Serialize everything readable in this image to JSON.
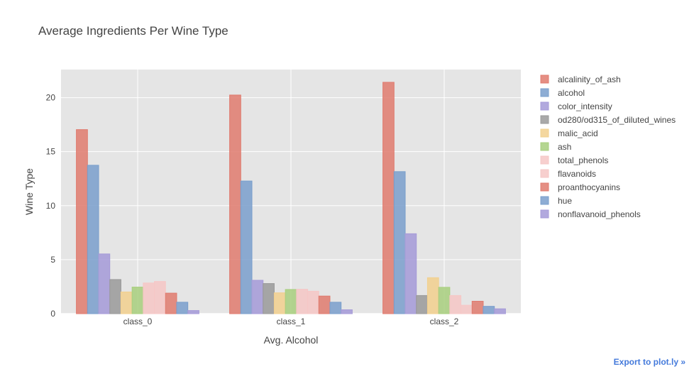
{
  "chart_data": {
    "type": "bar",
    "title": "Average Ingredients Per Wine Type",
    "xlabel": "Avg. Alcohol",
    "ylabel": "Wine Type",
    "categories": [
      "class_0",
      "class_1",
      "class_2"
    ],
    "ylim": [
      0,
      22.6
    ],
    "yticks": [
      0,
      5,
      10,
      15,
      20
    ],
    "grid": true,
    "legend_position": "right",
    "plot_background": "#e5e5e5",
    "series": [
      {
        "name": "alcalinity_of_ash",
        "color": "#e07b6f",
        "values": [
          17.04,
          20.24,
          21.42
        ]
      },
      {
        "name": "alcohol",
        "color": "#7a9fcc",
        "values": [
          13.74,
          12.28,
          13.15
        ]
      },
      {
        "name": "color_intensity",
        "color": "#a59ad8",
        "values": [
          5.53,
          3.09,
          7.4
        ]
      },
      {
        "name": "od280/od315_of_diluted_wines",
        "color": "#9a9a9a",
        "values": [
          3.16,
          2.79,
          1.68
        ]
      },
      {
        "name": "malic_acid",
        "color": "#f2d08e",
        "values": [
          2.01,
          1.93,
          3.33
        ]
      },
      {
        "name": "ash",
        "color": "#a8cf7e",
        "values": [
          2.46,
          2.24,
          2.44
        ]
      },
      {
        "name": "total_phenols",
        "color": "#f6c7c6",
        "values": [
          2.84,
          2.26,
          1.68
        ]
      },
      {
        "name": "flavanoids",
        "color": "#f6c7c6",
        "values": [
          2.98,
          2.08,
          0.78
        ]
      },
      {
        "name": "proanthocyanins",
        "color": "#e07b6f",
        "values": [
          1.9,
          1.63,
          1.15
        ]
      },
      {
        "name": "hue",
        "color": "#7a9fcc",
        "values": [
          1.06,
          1.06,
          0.68
        ]
      },
      {
        "name": "nonflavanoid_phenols",
        "color": "#a59ad8",
        "values": [
          0.29,
          0.36,
          0.45
        ]
      }
    ]
  },
  "export_link": "Export to plot.ly »"
}
